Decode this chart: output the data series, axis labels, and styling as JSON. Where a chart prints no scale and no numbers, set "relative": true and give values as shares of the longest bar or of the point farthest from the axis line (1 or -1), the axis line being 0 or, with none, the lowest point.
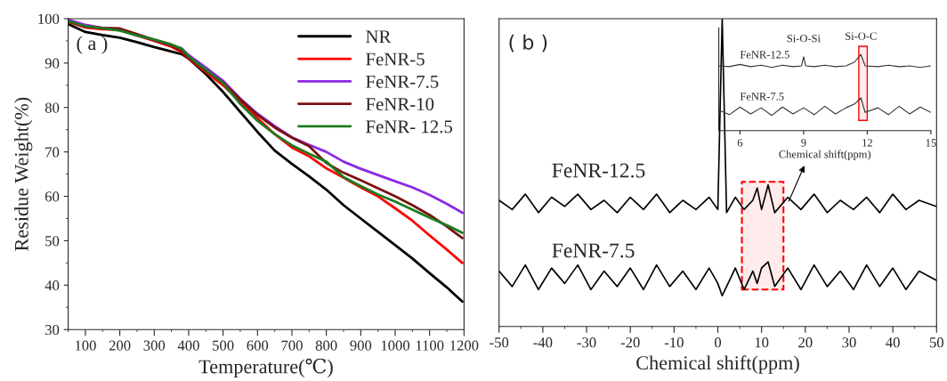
{
  "chart_data": [
    {
      "type": "line",
      "xlabel": "Temperature(℃)",
      "ylabel": "Residue Weight(%)",
      "annotations": [
        "( a )"
      ],
      "legend": "top right",
      "xlim": [
        50,
        1200
      ],
      "ylim": [
        30,
        100
      ],
      "xticks": [
        100,
        200,
        300,
        400,
        500,
        600,
        700,
        800,
        900,
        1000,
        1100,
        1200
      ],
      "yticks": [
        30,
        40,
        50,
        60,
        70,
        80,
        90,
        100
      ],
      "x": [
        50,
        100,
        150,
        200,
        250,
        300,
        350,
        380,
        400,
        450,
        500,
        550,
        600,
        650,
        700,
        750,
        800,
        850,
        900,
        950,
        1000,
        1050,
        1100,
        1150,
        1195
      ],
      "series": [
        {
          "name": "NR",
          "color": "#000000",
          "values": [
            98.8,
            97,
            96.3,
            95.7,
            94.7,
            93.6,
            92.6,
            92,
            91,
            87.5,
            83.5,
            79,
            74.5,
            70.3,
            67.3,
            64.5,
            61.5,
            58,
            55,
            52,
            49,
            46,
            42.7,
            39.5,
            36.3
          ]
        },
        {
          "name": "FeNR-5",
          "color": "#ff0000",
          "values": [
            99.3,
            98,
            97.6,
            97.5,
            96.2,
            95,
            93.7,
            92.5,
            91,
            88,
            85,
            81.3,
            77.6,
            74,
            71,
            69,
            66.3,
            64.2,
            62,
            60,
            57.3,
            54.5,
            51.2,
            48,
            45
          ]
        },
        {
          "name": "FeNR-7.5",
          "color": "#8a2be2",
          "values": [
            99.8,
            98.6,
            97.9,
            97.6,
            96.3,
            95.2,
            94,
            93.3,
            91.8,
            89,
            86,
            82,
            78.6,
            75.8,
            73.3,
            71.6,
            70,
            67.8,
            66.2,
            64.8,
            63.4,
            62,
            60.3,
            58.3,
            56.3
          ]
        },
        {
          "name": "FeNR-10",
          "color": "#7b1010",
          "values": [
            99.4,
            98.2,
            97.9,
            97.8,
            96.5,
            95.2,
            94,
            92.8,
            91.2,
            88.3,
            85.6,
            81.8,
            78.3,
            75.5,
            73.2,
            71.3,
            67.5,
            65.3,
            63.6,
            61.8,
            60,
            58,
            55.8,
            53.2,
            50.6
          ]
        },
        {
          "name": "FeNR- 12.5",
          "color": "#1f7a1f",
          "values": [
            99.5,
            98.3,
            97.8,
            97.3,
            96.2,
            95.3,
            94.2,
            93.2,
            91.5,
            88.5,
            85.5,
            80.8,
            77,
            74,
            71.5,
            69.6,
            67.8,
            64.3,
            62.3,
            60.4,
            58.8,
            57,
            55.2,
            53.5,
            51.8
          ]
        }
      ]
    },
    {
      "type": "line",
      "xlabel": "Chemical shift(ppm)",
      "annotations": [
        "( b )"
      ],
      "relative": true,
      "tick_labels": "x",
      "xlim": [
        -50,
        50
      ],
      "xticks": [
        -50,
        -40,
        -30,
        -20,
        -10,
        0,
        10,
        20,
        30,
        40,
        50
      ],
      "bands": [
        {
          "axis": "x",
          "from": 5.5,
          "to": 15,
          "color": "#ff0000"
        }
      ],
      "series": [
        {
          "name": "FeNR-12.5",
          "color": "#000000",
          "x": [
            -50,
            -47,
            -44,
            -41,
            -38,
            -35,
            -32,
            -29,
            -26,
            -23,
            -20,
            -17,
            -14,
            -11,
            -8,
            -5,
            -2,
            0,
            1,
            2,
            4,
            6,
            8,
            9,
            10,
            11.5,
            13,
            16,
            19,
            22,
            25,
            28,
            31,
            34,
            37,
            40,
            43,
            46,
            50
          ],
          "values": [
            0.41,
            0.38,
            0.43,
            0.37,
            0.42,
            0.39,
            0.43,
            0.38,
            0.41,
            0.37,
            0.42,
            0.38,
            0.43,
            0.37,
            0.41,
            0.38,
            0.42,
            0.38,
            1.0,
            0.37,
            0.42,
            0.38,
            0.41,
            0.45,
            0.38,
            0.46,
            0.37,
            0.42,
            0.38,
            0.43,
            0.37,
            0.41,
            0.38,
            0.42,
            0.37,
            0.43,
            0.38,
            0.41,
            0.39
          ]
        },
        {
          "name": "FeNR-7.5",
          "color": "#000000",
          "x": [
            -50,
            -47,
            -44,
            -41,
            -38,
            -35,
            -32,
            -29,
            -26,
            -23,
            -20,
            -17,
            -14,
            -11,
            -8,
            -5,
            -2,
            0,
            1,
            2,
            4,
            6,
            8,
            9,
            10,
            11.5,
            13,
            16,
            19,
            22,
            25,
            28,
            31,
            34,
            37,
            40,
            43,
            46,
            50
          ],
          "values": [
            0.18,
            0.13,
            0.2,
            0.12,
            0.19,
            0.14,
            0.2,
            0.12,
            0.18,
            0.13,
            0.19,
            0.12,
            0.2,
            0.13,
            0.18,
            0.12,
            0.19,
            0.14,
            0.1,
            0.13,
            0.19,
            0.12,
            0.18,
            0.14,
            0.19,
            0.21,
            0.13,
            0.19,
            0.12,
            0.2,
            0.13,
            0.18,
            0.12,
            0.2,
            0.13,
            0.19,
            0.12,
            0.18,
            0.15
          ]
        }
      ]
    },
    {
      "type": "line",
      "xlabel": "Chemical shift(ppm)",
      "relative": true,
      "tick_labels": "x",
      "xlim": [
        5,
        15
      ],
      "xticks": [
        6,
        9,
        12,
        15
      ],
      "annotations": [
        {
          "text": "Si-O-Si",
          "x": 9,
          "y": 0.97
        },
        {
          "text": "Si-O-C",
          "x": 11.7,
          "y": 1.0
        }
      ],
      "bands": [
        {
          "axis": "x",
          "from": 11.6,
          "to": 12.0,
          "color": "#ff0000"
        }
      ],
      "series": [
        {
          "name": "FeNR-12.5",
          "color": "#333333",
          "x": [
            5,
            5.5,
            6,
            6.5,
            7,
            7.5,
            8,
            8.5,
            8.9,
            9,
            9.1,
            9.5,
            10,
            10.5,
            11,
            11.4,
            11.7,
            11.9,
            12.5,
            13,
            13.5,
            14,
            14.5,
            15
          ],
          "values": [
            0.85,
            0.84,
            0.87,
            0.84,
            0.86,
            0.83,
            0.86,
            0.84,
            0.85,
            0.97,
            0.85,
            0.84,
            0.86,
            0.84,
            0.85,
            0.9,
            1.0,
            0.85,
            0.84,
            0.86,
            0.84,
            0.85,
            0.83,
            0.85
          ]
        },
        {
          "name": "FeNR-7.5",
          "color": "#333333",
          "x": [
            5,
            5.5,
            6,
            6.5,
            7,
            7.5,
            8,
            8.5,
            9,
            9.5,
            10,
            10.5,
            11,
            11.4,
            11.7,
            11.9,
            12.5,
            13,
            13.5,
            14,
            14.5,
            15
          ],
          "values": [
            0.27,
            0.21,
            0.31,
            0.22,
            0.3,
            0.2,
            0.31,
            0.22,
            0.3,
            0.21,
            0.32,
            0.22,
            0.3,
            0.35,
            0.43,
            0.24,
            0.3,
            0.21,
            0.32,
            0.22,
            0.31,
            0.24
          ]
        }
      ]
    }
  ]
}
